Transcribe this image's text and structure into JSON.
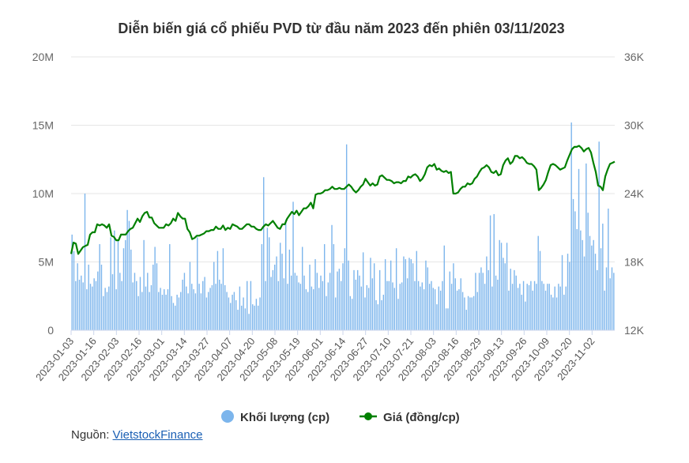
{
  "chart_data": {
    "type": "bar+line",
    "title": "Diễn biến giá cổ phiếu PVD từ đầu năm 2023 đến phiên 03/11/2023",
    "y_left": {
      "ticks": [
        "0",
        "5M",
        "10M",
        "15M",
        "20M"
      ],
      "range": [
        0,
        20000000
      ]
    },
    "y_right": {
      "ticks": [
        "12K",
        "18K",
        "24K",
        "30K",
        "36K"
      ],
      "range": [
        12000,
        36000
      ]
    },
    "x_tick_labels": [
      "2023-01-03",
      "2023-01-16",
      "2023-02-03",
      "2023-02-16",
      "2023-03-01",
      "2023-03-14",
      "2023-03-27",
      "2023-04-07",
      "2023-04-20",
      "2023-05-08",
      "2023-05-19",
      "2023-06-01",
      "2023-06-14",
      "2023-06-27",
      "2023-07-10",
      "2023-07-21",
      "2023-08-03",
      "2023-08-16",
      "2023-08-29",
      "2023-09-13",
      "2023-09-26",
      "2023-10-09",
      "2023-10-20",
      "2023-11-02"
    ],
    "series": [
      {
        "name": "Khối lượng (cp)",
        "kind": "bar",
        "color": "#7cb5ec",
        "values": [
          7.0,
          5.8,
          3.6,
          4.9,
          3.7,
          4.0,
          3.5,
          10.0,
          3.0,
          4.8,
          3.4,
          3.2,
          3.8,
          3.6,
          4.3,
          6.3,
          4.8,
          2.5,
          3.1,
          2.8,
          3.2,
          6.8,
          4.1,
          7.3,
          3.0,
          6.6,
          4.2,
          3.6,
          6.0,
          6.6,
          8.8,
          8.0,
          5.9,
          3.5,
          4.2,
          3.6,
          2.5,
          3.9,
          2.8,
          6.6,
          3.2,
          4.2,
          2.8,
          3.3,
          4.8,
          6.1,
          4.9,
          2.8,
          3.1,
          2.6,
          3.0,
          2.6,
          3.0,
          6.3,
          2.5,
          2.0,
          1.8,
          2.6,
          2.4,
          2.8,
          3.7,
          4.2,
          3.2,
          2.7,
          5.0,
          3.4,
          3.0,
          2.7,
          6.8,
          3.4,
          2.7,
          3.6,
          3.9,
          2.4,
          2.8,
          3.1,
          3.3,
          5.0,
          3.4,
          5.8,
          3.7,
          3.4,
          6.0,
          3.3,
          2.8,
          2.4,
          2.0,
          2.6,
          2.8,
          2.2,
          1.5,
          3.2,
          1.8,
          2.4,
          1.6,
          3.6,
          1.2,
          3.6,
          1.9,
          1.8,
          2.3,
          1.8,
          2.4,
          6.3,
          11.2,
          3.6,
          7.5,
          6.8,
          3.9,
          4.4,
          4.8,
          5.4,
          3.6,
          6.4,
          5.6,
          3.8,
          8.1,
          3.4,
          5.9,
          4.0,
          9.4,
          4.2,
          4.0,
          3.5,
          3.4,
          6.1,
          4.0,
          3.0,
          2.8,
          4.8,
          3.2,
          3.0,
          5.2,
          4.2,
          3.1,
          4.0,
          3.6,
          6.3,
          2.5,
          3.5,
          4.2,
          7.7,
          6.3,
          2.4,
          4.3,
          4.5,
          3.6,
          4.9,
          6.0,
          13.6,
          5.1,
          2.5,
          2.3,
          4.4,
          3.7,
          4.4,
          4.0,
          3.2,
          5.7,
          2.4,
          3.3,
          3.1,
          5.3,
          3.8,
          4.9,
          2.2,
          1.9,
          4.4,
          2.2,
          2.6,
          5.2,
          3.6,
          3.6,
          5.1,
          3.5,
          3.1,
          6.0,
          2.3,
          3.4,
          3.5,
          5.4,
          5.2,
          3.8,
          5.3,
          5.2,
          4.9,
          3.6,
          5.8,
          3.6,
          3.2,
          3.5,
          3.0,
          5.1,
          4.6,
          3.4,
          3.6,
          3.1,
          3.0,
          1.9,
          3.2,
          2.9,
          3.6,
          6.2,
          1.6,
          1.6,
          4.3,
          3.4,
          4.9,
          3.8,
          2.9,
          3.0,
          3.8,
          2.8,
          2.4,
          1.5,
          2.5,
          2.4,
          2.4,
          2.5,
          4.2,
          2.8,
          4.2,
          4.6,
          4.2,
          3.4,
          5.4,
          4.4,
          8.4,
          3.2,
          8.5,
          4.0,
          3.7,
          6.6,
          6.4,
          5.3,
          4.9,
          6.4,
          2.9,
          4.5,
          3.4,
          4.4,
          4.0,
          3.1,
          3.4,
          2.6,
          3.6,
          2.1,
          3.4,
          3.3,
          3.6,
          2.9,
          3.6,
          3.4,
          6.9,
          5.8,
          3.6,
          3.4,
          2.9,
          3.4,
          3.4,
          2.6,
          2.4,
          3.2,
          2.4,
          3.4,
          3.2,
          5.5,
          2.6,
          3.2,
          5.6,
          5.0,
          15.2,
          9.6,
          8.7,
          7.4,
          11.8,
          7.3,
          6.6,
          5.4,
          12.2,
          8.6,
          6.9,
          6.2,
          6.6,
          5.6,
          4.4,
          13.8,
          6.0,
          7.8,
          2.9,
          4.6,
          8.9,
          3.8,
          4.6,
          4.2
        ],
        "unit": "M"
      },
      {
        "name": "Giá (đồng/cp)",
        "kind": "line",
        "color": "#008000",
        "points": [
          [
            0,
            18.7
          ],
          [
            3,
            19.7
          ],
          [
            6,
            19.6
          ],
          [
            9,
            18.7
          ],
          [
            12,
            19.0
          ],
          [
            15,
            19.3
          ],
          [
            18,
            19.4
          ],
          [
            21,
            19.5
          ],
          [
            24,
            20.4
          ],
          [
            27,
            20.6
          ],
          [
            30,
            20.6
          ],
          [
            33,
            21.3
          ],
          [
            36,
            21.2
          ],
          [
            39,
            21.3
          ],
          [
            42,
            21.2
          ],
          [
            45,
            21.0
          ],
          [
            48,
            21.3
          ],
          [
            51,
            20.3
          ],
          [
            54,
            20.2
          ],
          [
            57,
            19.9
          ],
          [
            60,
            19.9
          ],
          [
            63,
            20.4
          ],
          [
            66,
            20.4
          ],
          [
            69,
            20.4
          ],
          [
            72,
            20.7
          ],
          [
            75,
            20.9
          ],
          [
            78,
            21.0
          ],
          [
            81,
            21.4
          ],
          [
            84,
            21.8
          ],
          [
            87,
            21.5
          ],
          [
            90,
            22.0
          ],
          [
            93,
            22.3
          ],
          [
            96,
            22.4
          ],
          [
            99,
            21.9
          ],
          [
            102,
            21.9
          ],
          [
            105,
            21.4
          ],
          [
            108,
            21.2
          ],
          [
            111,
            21.0
          ],
          [
            114,
            21.0
          ],
          [
            117,
            21.0
          ],
          [
            120,
            21.3
          ],
          [
            123,
            21.2
          ],
          [
            126,
            21.4
          ],
          [
            129,
            21.8
          ],
          [
            132,
            21.6
          ],
          [
            135,
            22.3
          ],
          [
            138,
            22.0
          ],
          [
            141,
            21.8
          ],
          [
            144,
            21.8
          ],
          [
            147,
            20.9
          ],
          [
            150,
            20.6
          ],
          [
            153,
            20.0
          ],
          [
            156,
            20.1
          ],
          [
            159,
            20.3
          ],
          [
            162,
            20.3
          ],
          [
            165,
            20.4
          ],
          [
            168,
            20.5
          ],
          [
            171,
            20.7
          ],
          [
            174,
            20.7
          ],
          [
            177,
            20.8
          ],
          [
            180,
            20.8
          ],
          [
            183,
            21.1
          ],
          [
            186,
            20.9
          ],
          [
            189,
            20.9
          ],
          [
            192,
            21.2
          ],
          [
            195,
            20.8
          ],
          [
            198,
            21.0
          ],
          [
            201,
            20.9
          ],
          [
            204,
            21.3
          ],
          [
            207,
            21.2
          ],
          [
            210,
            21.1
          ],
          [
            213,
            20.9
          ],
          [
            216,
            20.9
          ],
          [
            219,
            21.1
          ],
          [
            222,
            21.3
          ],
          [
            225,
            21.3
          ],
          [
            228,
            21.1
          ],
          [
            231,
            21.1
          ],
          [
            234,
            20.9
          ],
          [
            237,
            20.8
          ],
          [
            240,
            20.8
          ],
          [
            243,
            21.1
          ],
          [
            246,
            21.3
          ],
          [
            249,
            21.2
          ],
          [
            252,
            21.4
          ],
          [
            255,
            21.6
          ],
          [
            258,
            21.3
          ],
          [
            261,
            21.0
          ],
          [
            264,
            20.9
          ],
          [
            267,
            21.3
          ],
          [
            270,
            21.3
          ],
          [
            273,
            21.8
          ],
          [
            276,
            22.1
          ],
          [
            279,
            22.4
          ],
          [
            282,
            22.2
          ],
          [
            285,
            22.5
          ],
          [
            288,
            22.1
          ],
          [
            291,
            22.4
          ],
          [
            294,
            22.7
          ],
          [
            297,
            22.7
          ],
          [
            300,
            22.9
          ],
          [
            303,
            23.2
          ],
          [
            306,
            22.7
          ],
          [
            309,
            23.9
          ],
          [
            312,
            24.0
          ],
          [
            315,
            24.0
          ],
          [
            318,
            24.1
          ],
          [
            321,
            24.3
          ],
          [
            324,
            24.3
          ],
          [
            327,
            24.4
          ],
          [
            330,
            24.6
          ],
          [
            333,
            24.4
          ],
          [
            336,
            24.4
          ],
          [
            339,
            24.5
          ],
          [
            342,
            24.4
          ],
          [
            345,
            24.4
          ],
          [
            348,
            24.6
          ],
          [
            351,
            24.8
          ],
          [
            354,
            24.6
          ],
          [
            357,
            24.3
          ],
          [
            360,
            24.1
          ],
          [
            363,
            24.3
          ],
          [
            366,
            24.6
          ],
          [
            369,
            24.8
          ],
          [
            372,
            25.3
          ],
          [
            375,
            25.0
          ],
          [
            378,
            24.7
          ],
          [
            381,
            24.9
          ],
          [
            384,
            24.7
          ],
          [
            387,
            24.8
          ],
          [
            390,
            25.5
          ],
          [
            393,
            25.6
          ],
          [
            396,
            25.4
          ],
          [
            399,
            25.2
          ],
          [
            402,
            25.2
          ],
          [
            405,
            25.1
          ],
          [
            408,
            24.9
          ],
          [
            411,
            25.0
          ],
          [
            414,
            25.0
          ],
          [
            417,
            24.9
          ],
          [
            420,
            25.1
          ],
          [
            423,
            25.1
          ],
          [
            426,
            25.5
          ],
          [
            429,
            25.4
          ],
          [
            432,
            25.6
          ],
          [
            435,
            25.7
          ],
          [
            438,
            25.5
          ],
          [
            441,
            25.1
          ],
          [
            444,
            25.3
          ],
          [
            447,
            25.7
          ],
          [
            450,
            26.3
          ],
          [
            453,
            26.5
          ],
          [
            456,
            26.4
          ],
          [
            459,
            26.6
          ],
          [
            462,
            26.1
          ],
          [
            465,
            26.2
          ],
          [
            468,
            26.0
          ],
          [
            471,
            25.9
          ],
          [
            474,
            26.0
          ],
          [
            477,
            25.8
          ],
          [
            480,
            25.9
          ],
          [
            483,
            24.0
          ],
          [
            486,
            24.0
          ],
          [
            489,
            24.1
          ],
          [
            492,
            24.4
          ],
          [
            495,
            24.6
          ],
          [
            498,
            24.6
          ],
          [
            501,
            24.9
          ],
          [
            504,
            24.8
          ],
          [
            507,
            24.9
          ],
          [
            510,
            25.3
          ],
          [
            513,
            25.5
          ],
          [
            516,
            25.9
          ],
          [
            519,
            26.2
          ],
          [
            522,
            26.3
          ],
          [
            525,
            26.5
          ],
          [
            528,
            26.3
          ],
          [
            531,
            25.9
          ],
          [
            534,
            25.8
          ],
          [
            537,
            26.0
          ],
          [
            540,
            25.6
          ],
          [
            543,
            25.7
          ],
          [
            546,
            26.5
          ],
          [
            549,
            26.9
          ],
          [
            552,
            27.1
          ],
          [
            555,
            26.6
          ],
          [
            558,
            26.8
          ],
          [
            561,
            27.3
          ],
          [
            564,
            27.3
          ],
          [
            567,
            27.1
          ],
          [
            570,
            27.2
          ],
          [
            573,
            27.0
          ],
          [
            576,
            26.7
          ],
          [
            579,
            26.6
          ],
          [
            582,
            26.6
          ],
          [
            585,
            26.4
          ],
          [
            588,
            26.1
          ],
          [
            591,
            24.3
          ],
          [
            594,
            24.5
          ],
          [
            597,
            24.8
          ],
          [
            600,
            25.2
          ],
          [
            603,
            25.9
          ],
          [
            606,
            26.5
          ],
          [
            609,
            26.6
          ],
          [
            612,
            26.5
          ],
          [
            615,
            26.3
          ],
          [
            618,
            26.1
          ],
          [
            621,
            26.2
          ],
          [
            624,
            26.3
          ],
          [
            627,
            26.9
          ],
          [
            630,
            27.4
          ],
          [
            633,
            27.9
          ],
          [
            636,
            28.1
          ],
          [
            639,
            28.1
          ],
          [
            642,
            28.2
          ],
          [
            645,
            28.0
          ],
          [
            648,
            27.7
          ],
          [
            651,
            27.9
          ],
          [
            654,
            28.0
          ],
          [
            657,
            27.6
          ],
          [
            660,
            26.7
          ],
          [
            663,
            25.9
          ],
          [
            666,
            24.7
          ],
          [
            669,
            24.6
          ],
          [
            672,
            24.3
          ],
          [
            675,
            25.5
          ],
          [
            678,
            26.1
          ],
          [
            681,
            26.6
          ],
          [
            684,
            26.7
          ],
          [
            687,
            26.8
          ]
        ],
        "unit": "K",
        "note": "x is trading-session index 0–304 rescaled to 0–687; y in thousand đồng"
      }
    ],
    "legend": "bottom-center",
    "grid": "horizontal"
  },
  "source": {
    "label": "Nguồn:",
    "link_text": "VietstockFinance"
  }
}
